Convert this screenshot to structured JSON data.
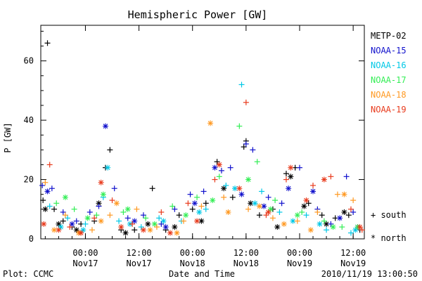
{
  "chart_data": {
    "type": "scatter",
    "title": "Hemispheric Power [GW]",
    "ylabel": "P [GW]",
    "xlabel": "Date and Time",
    "ylim": [
      0,
      72
    ],
    "xlim": [
      "2010-11-16T14:00",
      "2010-11-19T14:30"
    ],
    "yticks": [
      0,
      20,
      40,
      60
    ],
    "xticks": [
      {
        "time": "00:00",
        "date": "Nov17",
        "value": "2010-11-17T00:00"
      },
      {
        "time": "12:00",
        "date": "Nov17",
        "value": "2010-11-17T12:00"
      },
      {
        "time": "00:00",
        "date": "Nov18",
        "value": "2010-11-18T00:00"
      },
      {
        "time": "12:00",
        "date": "Nov18",
        "value": "2010-11-18T12:00"
      },
      {
        "time": "00:00",
        "date": "Nov19",
        "value": "2010-11-19T00:00"
      },
      {
        "time": "12:00",
        "date": "Nov19",
        "value": "2010-11-19T12:00"
      }
    ],
    "series": [
      {
        "name": "METP-02",
        "color": "#000000",
        "south": [
          [
            "2010-11-16T14:30",
            13
          ],
          [
            "2010-11-16T15:30",
            66
          ],
          [
            "2010-11-16T17:00",
            10
          ],
          [
            "2010-11-16T19:00",
            6
          ],
          [
            "2010-11-16T21:00",
            4
          ],
          [
            "2010-11-16T23:00",
            5
          ],
          [
            "2010-11-17T02:00",
            6
          ],
          [
            "2010-11-17T04:30",
            24
          ],
          [
            "2010-11-17T05:30",
            30
          ],
          [
            "2010-11-17T08:00",
            3
          ],
          [
            "2010-11-17T11:00",
            3
          ],
          [
            "2010-11-17T15:00",
            17
          ],
          [
            "2010-11-17T18:00",
            3
          ],
          [
            "2010-11-17T21:00",
            8
          ],
          [
            "2010-11-18T00:00",
            10
          ],
          [
            "2010-11-18T03:00",
            12
          ],
          [
            "2010-11-18T05:30",
            26
          ],
          [
            "2010-11-18T09:00",
            14
          ],
          [
            "2010-11-18T11:30",
            31
          ],
          [
            "2010-11-18T12:00",
            33
          ],
          [
            "2010-11-18T15:00",
            8
          ],
          [
            "2010-11-18T18:00",
            10
          ],
          [
            "2010-11-18T21:00",
            22
          ],
          [
            "2010-11-18T23:00",
            24
          ],
          [
            "2010-11-19T02:00",
            12
          ],
          [
            "2010-11-19T05:00",
            8
          ],
          [
            "2010-11-19T08:00",
            7
          ],
          [
            "2010-11-19T11:00",
            8
          ],
          [
            "2010-11-19T13:30",
            3
          ]
        ],
        "north": [
          [
            "2010-11-16T15:00",
            10
          ],
          [
            "2010-11-16T18:00",
            5
          ],
          [
            "2010-11-16T22:00",
            3
          ],
          [
            "2010-11-17T03:00",
            12
          ],
          [
            "2010-11-17T09:00",
            2
          ],
          [
            "2010-11-17T14:00",
            5
          ],
          [
            "2010-11-17T20:00",
            4
          ],
          [
            "2010-11-18T02:00",
            6
          ],
          [
            "2010-11-18T07:00",
            17
          ],
          [
            "2010-11-18T13:00",
            12
          ],
          [
            "2010-11-18T19:00",
            4
          ],
          [
            "2010-11-18T22:00",
            21
          ],
          [
            "2010-11-19T01:00",
            11
          ],
          [
            "2010-11-19T06:00",
            5
          ],
          [
            "2010-11-19T10:00",
            9
          ]
        ]
      },
      {
        "name": "NOAA-15",
        "color": "#1111cc",
        "south": [
          [
            "2010-11-16T14:20",
            18
          ],
          [
            "2010-11-16T16:30",
            17
          ],
          [
            "2010-11-16T19:00",
            9
          ],
          [
            "2010-11-16T22:00",
            6
          ],
          [
            "2010-11-17T01:00",
            9
          ],
          [
            "2010-11-17T03:00",
            11
          ],
          [
            "2010-11-17T06:30",
            17
          ],
          [
            "2010-11-17T09:30",
            7
          ],
          [
            "2010-11-17T13:00",
            8
          ],
          [
            "2010-11-17T17:00",
            5
          ],
          [
            "2010-11-17T20:00",
            10
          ],
          [
            "2010-11-17T23:30",
            15
          ],
          [
            "2010-11-18T02:30",
            16
          ],
          [
            "2010-11-18T06:30",
            23
          ],
          [
            "2010-11-18T08:30",
            24
          ],
          [
            "2010-11-18T12:00",
            32
          ],
          [
            "2010-11-18T13:30",
            30
          ],
          [
            "2010-11-18T17:00",
            14
          ],
          [
            "2010-11-18T20:00",
            12
          ],
          [
            "2010-11-19T00:00",
            24
          ],
          [
            "2010-11-19T04:00",
            10
          ],
          [
            "2010-11-19T07:00",
            5
          ],
          [
            "2010-11-19T10:30",
            21
          ],
          [
            "2010-11-19T12:00",
            9
          ]
        ],
        "north": [
          [
            "2010-11-16T15:30",
            16
          ],
          [
            "2010-11-16T21:00",
            5
          ],
          [
            "2010-11-17T04:30",
            38
          ],
          [
            "2010-11-17T11:00",
            6
          ],
          [
            "2010-11-17T18:00",
            4
          ],
          [
            "2010-11-18T00:30",
            12
          ],
          [
            "2010-11-18T05:00",
            24
          ],
          [
            "2010-11-18T11:00",
            15
          ],
          [
            "2010-11-18T16:00",
            11
          ],
          [
            "2010-11-18T21:30",
            17
          ],
          [
            "2010-11-19T03:00",
            16
          ],
          [
            "2010-11-19T09:00",
            7
          ],
          [
            "2010-11-19T13:00",
            4
          ]
        ]
      },
      {
        "name": "NOAA-16",
        "color": "#00c8e6",
        "south": [
          [
            "2010-11-16T16:00",
            11
          ],
          [
            "2010-11-16T20:00",
            7
          ],
          [
            "2010-11-17T00:00",
            5
          ],
          [
            "2010-11-17T04:00",
            14
          ],
          [
            "2010-11-17T07:30",
            6
          ],
          [
            "2010-11-17T12:30",
            4
          ],
          [
            "2010-11-17T16:30",
            7
          ],
          [
            "2010-11-17T21:30",
            6
          ],
          [
            "2010-11-18T03:00",
            10
          ],
          [
            "2010-11-18T07:30",
            18
          ],
          [
            "2010-11-18T11:00",
            52
          ],
          [
            "2010-11-18T15:30",
            16
          ],
          [
            "2010-11-18T19:30",
            9
          ],
          [
            "2010-11-19T01:30",
            8
          ],
          [
            "2010-11-19T06:00",
            3
          ],
          [
            "2010-11-19T11:30",
            2
          ]
        ],
        "north": [
          [
            "2010-11-16T18:30",
            4
          ],
          [
            "2010-11-16T23:30",
            3
          ],
          [
            "2010-11-17T05:00",
            24
          ],
          [
            "2010-11-17T10:00",
            5
          ],
          [
            "2010-11-17T17:30",
            6
          ],
          [
            "2010-11-18T01:30",
            9
          ],
          [
            "2010-11-18T09:30",
            17
          ],
          [
            "2010-11-18T14:00",
            12
          ],
          [
            "2010-11-18T22:30",
            6
          ],
          [
            "2010-11-19T04:30",
            5
          ],
          [
            "2010-11-19T12:30",
            3
          ]
        ]
      },
      {
        "name": "NOAA-17",
        "color": "#33ee55",
        "south": [
          [
            "2010-11-16T17:30",
            12
          ],
          [
            "2010-11-16T21:30",
            10
          ],
          [
            "2010-11-17T02:30",
            8
          ],
          [
            "2010-11-17T08:30",
            9
          ],
          [
            "2010-11-17T13:30",
            7
          ],
          [
            "2010-11-17T19:30",
            11
          ],
          [
            "2010-11-18T01:00",
            14
          ],
          [
            "2010-11-18T06:00",
            21
          ],
          [
            "2010-11-18T10:30",
            38
          ],
          [
            "2010-11-18T14:30",
            26
          ],
          [
            "2010-11-18T18:30",
            13
          ],
          [
            "2010-11-19T00:30",
            9
          ],
          [
            "2010-11-19T05:30",
            6
          ],
          [
            "2010-11-19T09:30",
            4
          ]
        ],
        "north": [
          [
            "2010-11-16T19:30",
            14
          ],
          [
            "2010-11-17T00:30",
            7
          ],
          [
            "2010-11-17T04:00",
            15
          ],
          [
            "2010-11-17T09:30",
            10
          ],
          [
            "2010-11-17T15:30",
            5
          ],
          [
            "2010-11-17T22:30",
            8
          ],
          [
            "2010-11-18T04:30",
            13
          ],
          [
            "2010-11-18T12:30",
            20
          ],
          [
            "2010-11-18T17:30",
            10
          ],
          [
            "2010-11-18T23:30",
            8
          ],
          [
            "2010-11-19T07:30",
            4
          ],
          [
            "2010-11-19T13:00",
            4
          ]
        ]
      },
      {
        "name": "NOAA-18",
        "color": "#ff9922",
        "south": [
          [
            "2010-11-16T15:00",
            19
          ],
          [
            "2010-11-16T19:30",
            8
          ],
          [
            "2010-11-17T01:30",
            3
          ],
          [
            "2010-11-17T05:30",
            8
          ],
          [
            "2010-11-17T11:30",
            10
          ],
          [
            "2010-11-17T16:00",
            4
          ],
          [
            "2010-11-17T22:00",
            6
          ],
          [
            "2010-11-18T02:00",
            11
          ],
          [
            "2010-11-18T07:00",
            14
          ],
          [
            "2010-11-18T12:30",
            10
          ],
          [
            "2010-11-18T18:00",
            7
          ],
          [
            "2010-11-18T23:30",
            6
          ],
          [
            "2010-11-19T04:00",
            9
          ],
          [
            "2010-11-19T08:30",
            15
          ],
          [
            "2010-11-19T12:00",
            13
          ]
        ],
        "north": [
          [
            "2010-11-16T17:00",
            3
          ],
          [
            "2010-11-16T22:30",
            2
          ],
          [
            "2010-11-17T03:30",
            6
          ],
          [
            "2010-11-17T07:00",
            12
          ],
          [
            "2010-11-17T14:30",
            3
          ],
          [
            "2010-11-17T20:30",
            2
          ],
          [
            "2010-11-18T04:00",
            39
          ],
          [
            "2010-11-18T08:00",
            9
          ],
          [
            "2010-11-18T15:00",
            11
          ],
          [
            "2010-11-18T20:30",
            5
          ],
          [
            "2010-11-19T02:30",
            3
          ],
          [
            "2010-11-19T10:00",
            15
          ]
        ]
      },
      {
        "name": "NOAA-19",
        "color": "#e83a1c",
        "south": [
          [
            "2010-11-16T16:00",
            25
          ],
          [
            "2010-11-16T20:30",
            4
          ],
          [
            "2010-11-17T02:00",
            7
          ],
          [
            "2010-11-17T06:00",
            13
          ],
          [
            "2010-11-17T10:30",
            5
          ],
          [
            "2010-11-17T17:00",
            9
          ],
          [
            "2010-11-17T23:00",
            12
          ],
          [
            "2010-11-18T05:00",
            20
          ],
          [
            "2010-11-18T12:00",
            46
          ],
          [
            "2010-11-18T16:30",
            8
          ],
          [
            "2010-11-18T21:00",
            20
          ],
          [
            "2010-11-19T03:00",
            18
          ],
          [
            "2010-11-19T07:00",
            21
          ],
          [
            "2010-11-19T11:30",
            10
          ],
          [
            "2010-11-19T14:00",
            3
          ]
        ],
        "north": [
          [
            "2010-11-16T14:40",
            5
          ],
          [
            "2010-11-16T18:00",
            3
          ],
          [
            "2010-11-16T23:00",
            2
          ],
          [
            "2010-11-17T03:30",
            19
          ],
          [
            "2010-11-17T08:00",
            4
          ],
          [
            "2010-11-17T13:00",
            3
          ],
          [
            "2010-11-17T19:00",
            2
          ],
          [
            "2010-11-18T01:00",
            6
          ],
          [
            "2010-11-18T06:00",
            25
          ],
          [
            "2010-11-18T10:30",
            17
          ],
          [
            "2010-11-18T17:00",
            9
          ],
          [
            "2010-11-18T22:00",
            24
          ],
          [
            "2010-11-19T01:30",
            13
          ],
          [
            "2010-11-19T05:30",
            20
          ],
          [
            "2010-11-19T13:30",
            4
          ]
        ]
      }
    ],
    "symbol_legend": {
      "south": "+ south",
      "north": "* north"
    },
    "legend_position": "right"
  },
  "footer": {
    "left": "Plot: CCMC",
    "right": "2010/11/19 13:00:50"
  }
}
